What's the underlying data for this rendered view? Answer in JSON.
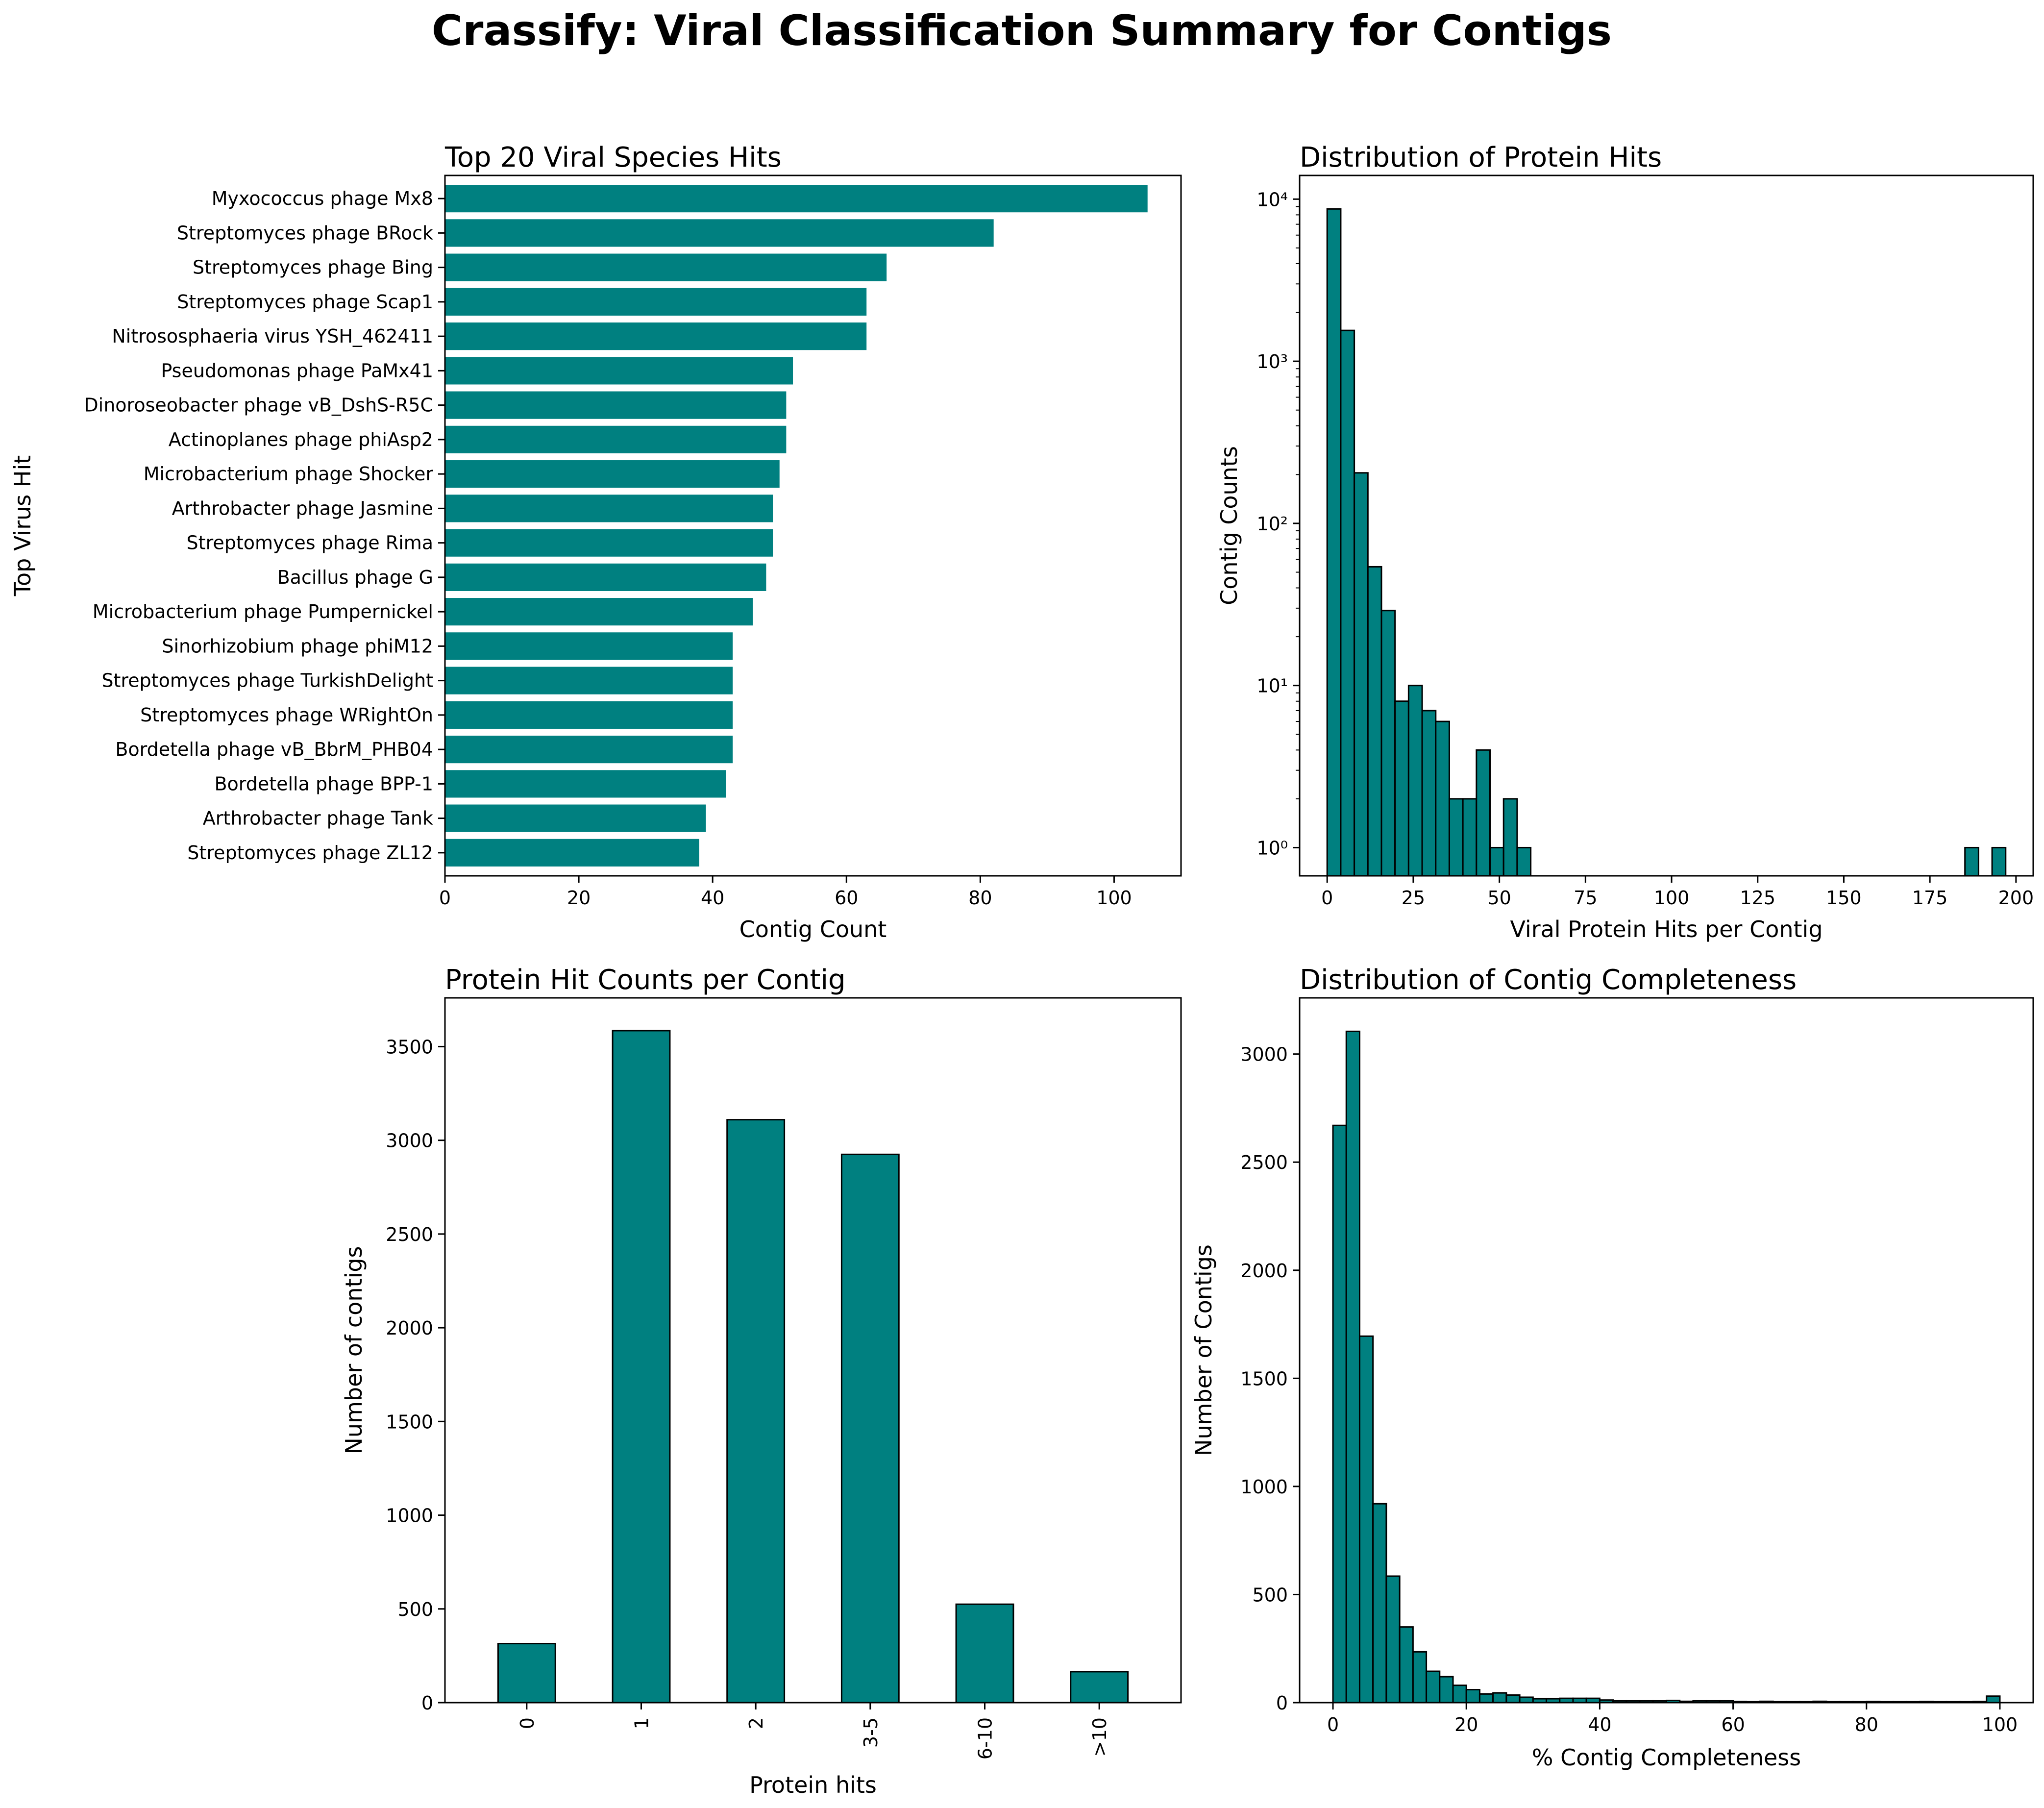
{
  "figure_title": "Crassify: Viral Classification Summary for Contigs",
  "colors": {
    "bar": "#008080",
    "edge": "#000000",
    "axis": "#000000"
  },
  "chart_data": [
    {
      "id": "species",
      "type": "bar",
      "orientation": "horizontal",
      "title": "Top 20 Viral Species Hits",
      "xlabel": "Contig Count",
      "ylabel": "Top Virus Hit",
      "xlim": [
        0,
        110
      ],
      "xticks": [
        0,
        20,
        40,
        60,
        80,
        100
      ],
      "categories": [
        "Myxococcus phage Mx8",
        "Streptomyces phage BRock",
        "Streptomyces phage Bing",
        "Streptomyces phage Scap1",
        "Nitrososphaeria virus YSH_462411",
        "Pseudomonas phage PaMx41",
        "Dinoroseobacter phage vB_DshS-R5C",
        "Actinoplanes phage phiAsp2",
        "Microbacterium phage Shocker",
        "Arthrobacter phage Jasmine",
        "Streptomyces phage Rima",
        "Bacillus phage G",
        "Microbacterium phage Pumpernickel",
        "Sinorhizobium phage phiM12",
        "Streptomyces phage TurkishDelight",
        "Streptomyces phage WRightOn",
        "Bordetella phage vB_BbrM_PHB04",
        "Bordetella phage BPP-1",
        "Arthrobacter phage Tank",
        "Streptomyces phage ZL12"
      ],
      "values": [
        105,
        82,
        66,
        63,
        63,
        52,
        51,
        51,
        50,
        49,
        49,
        48,
        46,
        43,
        43,
        43,
        43,
        42,
        39,
        38
      ]
    },
    {
      "id": "protein_hist",
      "type": "bar",
      "subtype": "histogram",
      "yscale": "log",
      "title": "Distribution of Protein Hits",
      "xlabel": "Viral Protein Hits per Contig",
      "ylabel": "Contig Counts",
      "xlim": [
        -8,
        205
      ],
      "ylim": [
        0.67,
        14000
      ],
      "xticks": [
        0,
        25,
        50,
        75,
        100,
        125,
        150,
        175,
        200
      ],
      "yticks": [
        1,
        10,
        100,
        1000,
        10000
      ],
      "ytick_labels": [
        "10⁰",
        "10¹",
        "10²",
        "10³",
        "10⁴"
      ],
      "bin_width": 3.94,
      "bins": [
        {
          "x": 0,
          "count": 8700
        },
        {
          "x": 3.94,
          "count": 1550
        },
        {
          "x": 7.88,
          "count": 205
        },
        {
          "x": 11.82,
          "count": 54
        },
        {
          "x": 15.76,
          "count": 29
        },
        {
          "x": 19.7,
          "count": 8
        },
        {
          "x": 23.64,
          "count": 10
        },
        {
          "x": 27.58,
          "count": 7
        },
        {
          "x": 31.52,
          "count": 6
        },
        {
          "x": 35.46,
          "count": 2
        },
        {
          "x": 39.4,
          "count": 2
        },
        {
          "x": 43.34,
          "count": 4
        },
        {
          "x": 47.28,
          "count": 1
        },
        {
          "x": 51.22,
          "count": 2
        },
        {
          "x": 55.16,
          "count": 1
        },
        {
          "x": 185.18,
          "count": 1
        },
        {
          "x": 193.06,
          "count": 1
        }
      ]
    },
    {
      "id": "hit_counts",
      "type": "bar",
      "title": "Protein Hit Counts per Contig",
      "xlabel": "Protein hits",
      "ylabel": "Number of contigs",
      "ylim": [
        0,
        3760
      ],
      "yticks": [
        0,
        500,
        1000,
        1500,
        2000,
        2500,
        3000,
        3500
      ],
      "categories": [
        "0",
        "1",
        "2",
        "3-5",
        "6-10",
        ">10"
      ],
      "values": [
        315,
        3585,
        3110,
        2925,
        525,
        165
      ]
    },
    {
      "id": "completeness_hist",
      "type": "bar",
      "subtype": "histogram",
      "title": "Distribution of Contig Completeness",
      "xlabel": "% Contig Completeness",
      "ylabel": "Number of Contigs",
      "xlim": [
        -5,
        105
      ],
      "ylim": [
        0,
        3260
      ],
      "xticks": [
        0,
        20,
        40,
        60,
        80,
        100
      ],
      "yticks": [
        0,
        500,
        1000,
        1500,
        2000,
        2500,
        3000
      ],
      "bin_width": 2,
      "bins": [
        {
          "x": 0,
          "count": 2670
        },
        {
          "x": 2,
          "count": 3105
        },
        {
          "x": 4,
          "count": 1695
        },
        {
          "x": 6,
          "count": 920
        },
        {
          "x": 8,
          "count": 585
        },
        {
          "x": 10,
          "count": 350
        },
        {
          "x": 12,
          "count": 235
        },
        {
          "x": 14,
          "count": 145
        },
        {
          "x": 16,
          "count": 120
        },
        {
          "x": 18,
          "count": 80
        },
        {
          "x": 20,
          "count": 60
        },
        {
          "x": 22,
          "count": 40
        },
        {
          "x": 24,
          "count": 45
        },
        {
          "x": 26,
          "count": 35
        },
        {
          "x": 28,
          "count": 25
        },
        {
          "x": 30,
          "count": 18
        },
        {
          "x": 32,
          "count": 18
        },
        {
          "x": 34,
          "count": 20
        },
        {
          "x": 36,
          "count": 20
        },
        {
          "x": 38,
          "count": 20
        },
        {
          "x": 40,
          "count": 12
        },
        {
          "x": 42,
          "count": 8
        },
        {
          "x": 44,
          "count": 8
        },
        {
          "x": 46,
          "count": 8
        },
        {
          "x": 48,
          "count": 8
        },
        {
          "x": 50,
          "count": 10
        },
        {
          "x": 52,
          "count": 6
        },
        {
          "x": 54,
          "count": 8
        },
        {
          "x": 56,
          "count": 8
        },
        {
          "x": 58,
          "count": 8
        },
        {
          "x": 60,
          "count": 5
        },
        {
          "x": 62,
          "count": 4
        },
        {
          "x": 64,
          "count": 6
        },
        {
          "x": 66,
          "count": 4
        },
        {
          "x": 68,
          "count": 4
        },
        {
          "x": 70,
          "count": 4
        },
        {
          "x": 72,
          "count": 6
        },
        {
          "x": 74,
          "count": 4
        },
        {
          "x": 76,
          "count": 4
        },
        {
          "x": 78,
          "count": 4
        },
        {
          "x": 80,
          "count": 5
        },
        {
          "x": 82,
          "count": 4
        },
        {
          "x": 84,
          "count": 4
        },
        {
          "x": 86,
          "count": 4
        },
        {
          "x": 88,
          "count": 5
        },
        {
          "x": 90,
          "count": 4
        },
        {
          "x": 92,
          "count": 4
        },
        {
          "x": 94,
          "count": 4
        },
        {
          "x": 96,
          "count": 5
        },
        {
          "x": 98,
          "count": 30
        }
      ]
    }
  ]
}
